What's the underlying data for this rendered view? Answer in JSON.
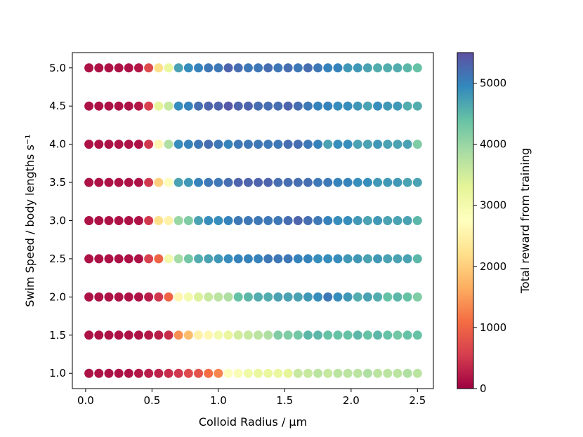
{
  "chart_data": {
    "type": "scatter",
    "xlabel": "Colloid Radius / μm",
    "ylabel": "Swim Speed / body lengths s⁻¹",
    "colorbar_label": "Total reward from training",
    "colormap": "Spectral",
    "xlim": [
      -0.1,
      2.62
    ],
    "ylim": [
      0.8,
      5.2
    ],
    "clim": [
      0,
      5500
    ],
    "x_ticks": [
      "0.0",
      "0.5",
      "1.0",
      "1.5",
      "2.0",
      "2.5"
    ],
    "y_ticks": [
      "1.0",
      "1.5",
      "2.0",
      "2.5",
      "3.0",
      "3.5",
      "4.0",
      "4.5",
      "5.0"
    ],
    "colorbar_ticks": [
      "0",
      "1000",
      "2000",
      "3000",
      "4000",
      "5000"
    ],
    "grid": false,
    "x": [
      0.025,
      0.1,
      0.175,
      0.25,
      0.325,
      0.4,
      0.475,
      0.55,
      0.625,
      0.7,
      0.775,
      0.85,
      0.925,
      1.0,
      1.075,
      1.15,
      1.225,
      1.3,
      1.375,
      1.45,
      1.525,
      1.6,
      1.675,
      1.75,
      1.825,
      1.9,
      1.975,
      2.05,
      2.125,
      2.2,
      2.275,
      2.35,
      2.425,
      2.5
    ],
    "series": [
      {
        "y": 1.0,
        "values": [
          150,
          150,
          150,
          150,
          150,
          200,
          250,
          300,
          400,
          500,
          700,
          800,
          1100,
          1300,
          2800,
          2900,
          3100,
          3200,
          3200,
          3200,
          3300,
          3600,
          3600,
          3700,
          3600,
          3700,
          3700,
          3700,
          3800,
          3700,
          3700,
          3700,
          3800,
          3700
        ]
      },
      {
        "y": 1.5,
        "values": [
          150,
          150,
          150,
          150,
          150,
          150,
          200,
          250,
          400,
          1400,
          1800,
          2500,
          2600,
          3000,
          3200,
          3500,
          3600,
          3700,
          3800,
          4200,
          4200,
          4300,
          4500,
          4500,
          4400,
          4400,
          4400,
          4500,
          4400,
          4500,
          4400,
          4300,
          4400,
          4400
        ]
      },
      {
        "y": 2.0,
        "values": [
          150,
          150,
          150,
          150,
          150,
          150,
          250,
          500,
          1000,
          2600,
          3000,
          3400,
          3600,
          3700,
          3800,
          4400,
          4500,
          4600,
          4600,
          4700,
          4700,
          4700,
          4800,
          4900,
          5100,
          4900,
          4800,
          4600,
          4700,
          4600,
          4400,
          4500,
          4400,
          4200
        ]
      },
      {
        "y": 2.5,
        "values": [
          150,
          150,
          150,
          150,
          150,
          150,
          600,
          1000,
          3000,
          3900,
          4300,
          4600,
          4700,
          4800,
          4900,
          5000,
          5000,
          5000,
          5100,
          5100,
          5100,
          5000,
          5000,
          4900,
          4900,
          4900,
          4800,
          4800,
          4700,
          4800,
          4700,
          4700,
          4700,
          4500
        ]
      },
      {
        "y": 3.0,
        "values": [
          150,
          150,
          150,
          150,
          150,
          150,
          500,
          2200,
          2500,
          4000,
          4200,
          4700,
          4900,
          4900,
          5000,
          5100,
          5100,
          5100,
          5100,
          5100,
          5200,
          5300,
          5200,
          5100,
          5000,
          4900,
          4900,
          4800,
          4700,
          4800,
          4700,
          4700,
          4700,
          4500
        ]
      },
      {
        "y": 3.5,
        "values": [
          150,
          150,
          150,
          150,
          150,
          150,
          500,
          2000,
          2800,
          4700,
          4800,
          5000,
          5100,
          5100,
          5200,
          5300,
          5300,
          5300,
          5300,
          5200,
          5200,
          5200,
          5200,
          5100,
          5100,
          5000,
          5000,
          4900,
          4900,
          4800,
          4800,
          4800,
          4700,
          4700
        ]
      },
      {
        "y": 4.0,
        "values": [
          150,
          150,
          150,
          150,
          150,
          150,
          500,
          2600,
          3800,
          4900,
          5000,
          5100,
          5200,
          5100,
          5000,
          5100,
          5100,
          5100,
          5100,
          5100,
          5200,
          5200,
          5100,
          5000,
          4700,
          4900,
          4900,
          4700,
          4700,
          4800,
          4700,
          4700,
          4700,
          4200
        ]
      },
      {
        "y": 4.5,
        "values": [
          150,
          150,
          150,
          150,
          150,
          200,
          600,
          3300,
          3600,
          4900,
          5000,
          5200,
          5300,
          5300,
          5400,
          5300,
          5300,
          5200,
          5200,
          5200,
          5300,
          5200,
          5100,
          5000,
          5000,
          4900,
          4900,
          4800,
          4700,
          4900,
          4800,
          4800,
          4600,
          4600
        ]
      },
      {
        "y": 5.0,
        "values": [
          150,
          150,
          150,
          150,
          150,
          200,
          700,
          2200,
          3200,
          4700,
          4900,
          5000,
          5100,
          5100,
          5300,
          5200,
          5100,
          5100,
          5200,
          5100,
          5200,
          5100,
          5200,
          5100,
          5000,
          5000,
          4800,
          4800,
          4700,
          4600,
          4600,
          4600,
          4500,
          4400
        ]
      }
    ]
  }
}
